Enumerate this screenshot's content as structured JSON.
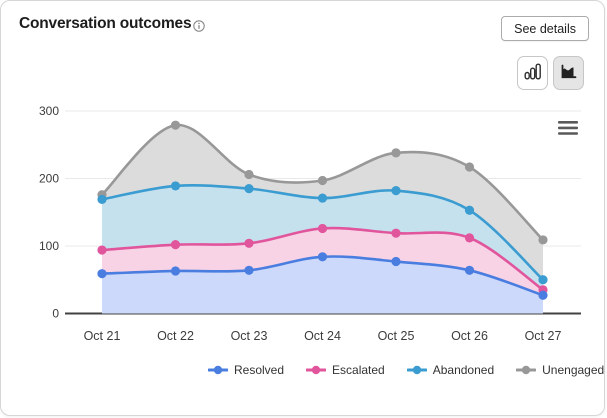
{
  "header": {
    "title": "Conversation outcomes",
    "see_details_label": "See details"
  },
  "toolbar": {
    "chart_type_options": [
      "bar",
      "area"
    ],
    "selected_chart_type": "area"
  },
  "icons": {
    "info": "info-icon",
    "bar_chart": "bar-chart-icon",
    "area_chart": "area-chart-icon",
    "menu": "hamburger-menu-icon"
  },
  "colors": {
    "card_border": "#d6d6d6",
    "grid_line": "#e9e9e9",
    "axis_line": "#424242",
    "axis_text": "#3c3c3c",
    "icon_gray": "#595959"
  },
  "chart_data": {
    "type": "area",
    "title": "Conversation outcomes",
    "categories": [
      "Oct 21",
      "Oct 22",
      "Oct 23",
      "Oct 24",
      "Oct 25",
      "Oct 26",
      "Oct 27"
    ],
    "series": [
      {
        "name": "Resolved",
        "color": "#4a7de0",
        "fill": "#ccd9fb",
        "values": [
          59,
          63,
          64,
          84,
          77,
          64,
          27
        ]
      },
      {
        "name": "Escalated",
        "color": "#e1559d",
        "fill": "#f7d3e5",
        "values": [
          94,
          102,
          104,
          126,
          119,
          112,
          35
        ]
      },
      {
        "name": "Abandoned",
        "color": "#3a9cd0",
        "fill": "#c5e1ee",
        "values": [
          169,
          189,
          185,
          171,
          182,
          153,
          50
        ]
      },
      {
        "name": "Unengaged",
        "color": "#989898",
        "fill": "#dcdcdc",
        "values": [
          176,
          279,
          206,
          197,
          238,
          217,
          109
        ]
      }
    ],
    "xlabel": "",
    "ylabel": "",
    "yticks": [
      0,
      100,
      200,
      300
    ],
    "ylim": [
      0,
      300
    ],
    "grid": true,
    "smooth": true,
    "legend_position": "bottom"
  }
}
